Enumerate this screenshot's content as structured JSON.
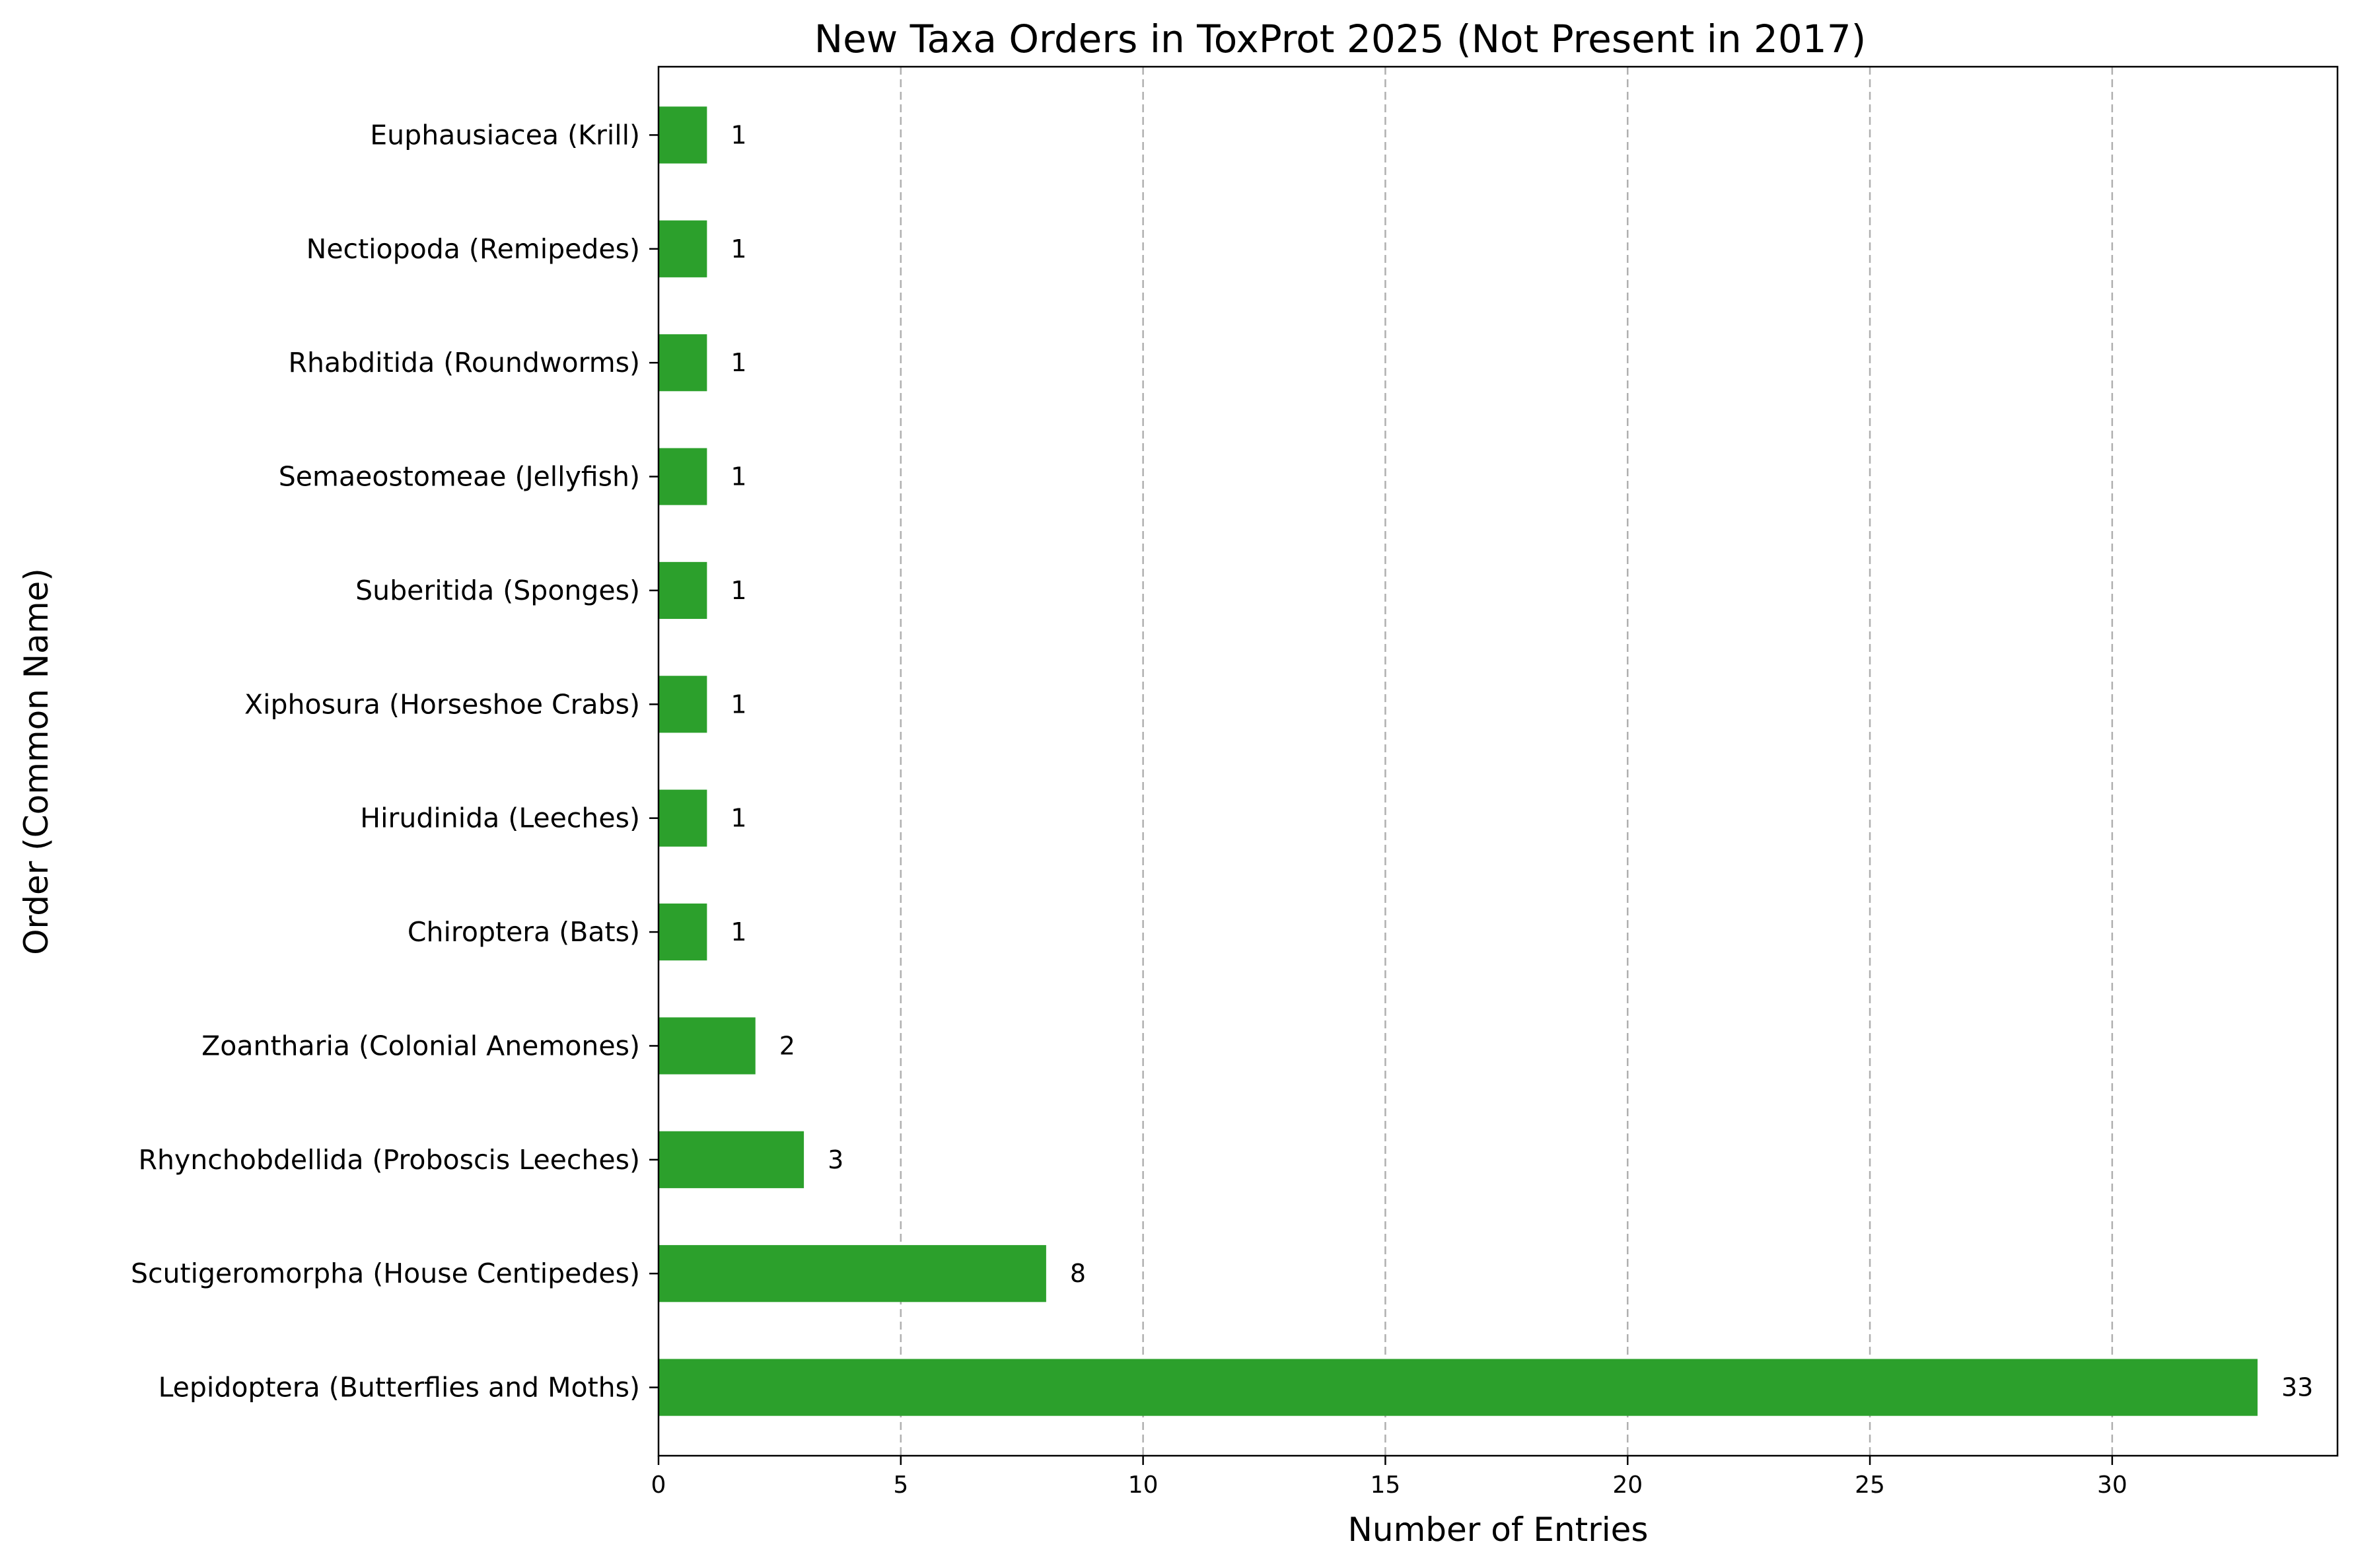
{
  "chart_data": {
    "type": "bar",
    "orientation": "horizontal",
    "title": "New Taxa Orders in ToxProt 2025 (Not Present in 2017)",
    "xlabel": "Number of Entries",
    "ylabel": "Order (Common Name)",
    "categories": [
      "Lepidoptera (Butterflies and Moths)",
      "Scutigeromorpha (House Centipedes)",
      "Rhynchobdellida (Proboscis Leeches)",
      "Zoantharia (Colonial Anemones)",
      "Chiroptera (Bats)",
      "Hirudinida (Leeches)",
      "Xiphosura (Horseshoe Crabs)",
      "Suberitida (Sponges)",
      "Semaeostomeae (Jellyfish)",
      "Rhabditida (Roundworms)",
      "Nectiopoda (Remipedes)",
      "Euphausiacea (Krill)"
    ],
    "values": [
      33,
      8,
      3,
      2,
      1,
      1,
      1,
      1,
      1,
      1,
      1,
      1
    ],
    "data_labels": [
      "33",
      "8",
      "3",
      "2",
      "1",
      "1",
      "1",
      "1",
      "1",
      "1",
      "1",
      "1"
    ],
    "xlim": [
      0,
      34.65
    ],
    "xticks": [
      0,
      5,
      10,
      15,
      20,
      25,
      30
    ],
    "xtick_labels": [
      "0",
      "5",
      "10",
      "15",
      "20",
      "25",
      "30"
    ],
    "grid": "x-dashed",
    "bar_color": "#2ca02c"
  }
}
